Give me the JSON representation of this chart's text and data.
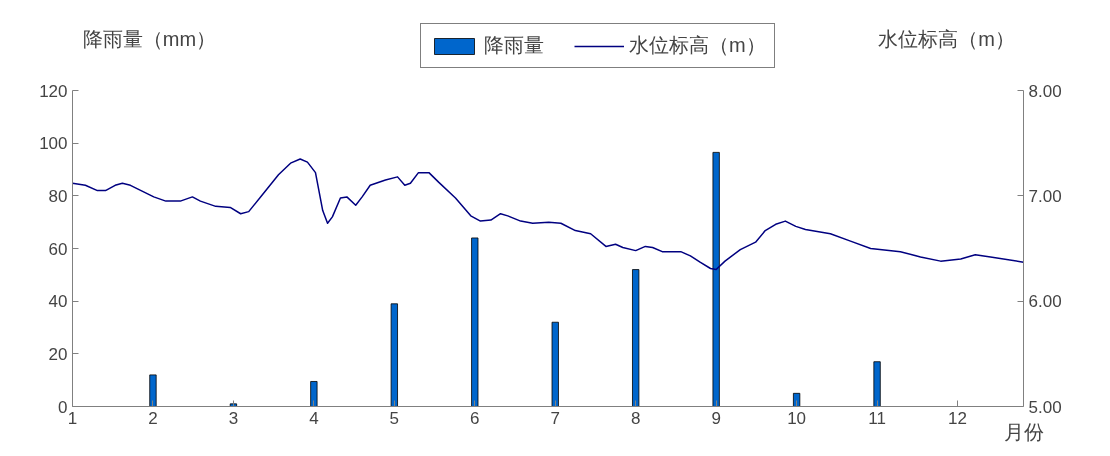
{
  "chart_data": {
    "type": "bar",
    "ylabel": "降雨量（mm）",
    "y2label": "水位标高（m）",
    "xlabel": "月份",
    "xlim": [
      1,
      12.82
    ],
    "xticks": [
      1,
      2,
      3,
      4,
      5,
      6,
      7,
      8,
      9,
      10,
      11,
      12
    ],
    "ylim": [
      0,
      120
    ],
    "yticks": [
      0,
      20,
      40,
      60,
      80,
      100,
      120
    ],
    "y2lim": [
      5,
      8
    ],
    "y2ticks": [
      {
        "value": 5,
        "label": "5.00"
      },
      {
        "value": 6,
        "label": "6.00"
      },
      {
        "value": 7,
        "label": "7.00"
      },
      {
        "value": 8,
        "label": "8.00"
      }
    ],
    "grid": false,
    "legend": "top",
    "series": [
      {
        "name": "降雨量",
        "color": "#0066cc",
        "x": [
          2,
          3,
          4,
          5,
          6,
          7,
          8,
          9,
          10,
          11
        ],
        "values": [
          12,
          1,
          9.5,
          39,
          64,
          32,
          52,
          96.5,
          5,
          17
        ]
      },
      {
        "name": "水位标高（m）",
        "type": "line",
        "axis": "y2",
        "color": "#000080",
        "x": [
          1.0,
          1.16,
          1.31,
          1.41,
          1.53,
          1.62,
          1.72,
          2.01,
          2.16,
          2.34,
          2.49,
          2.59,
          2.78,
          2.96,
          3.09,
          3.19,
          3.36,
          3.56,
          3.71,
          3.83,
          3.92,
          4.02,
          4.11,
          4.17,
          4.23,
          4.33,
          4.41,
          4.52,
          4.6,
          4.7,
          4.89,
          5.04,
          5.13,
          5.2,
          5.3,
          5.43,
          5.55,
          5.76,
          5.95,
          6.07,
          6.2,
          6.32,
          6.41,
          6.57,
          6.72,
          6.92,
          7.07,
          7.25,
          7.44,
          7.63,
          7.75,
          7.84,
          8.0,
          8.12,
          8.21,
          8.33,
          8.56,
          8.68,
          8.8,
          8.93,
          9.0,
          9.11,
          9.3,
          9.49,
          9.61,
          9.74,
          9.86,
          9.99,
          10.11,
          10.42,
          10.67,
          10.92,
          11.29,
          11.54,
          11.79,
          12.04,
          12.22,
          12.41,
          12.82
        ],
        "values": [
          7.12,
          7.1,
          7.05,
          7.05,
          7.1,
          7.12,
          7.1,
          6.99,
          6.95,
          6.95,
          6.99,
          6.95,
          6.9,
          6.89,
          6.83,
          6.85,
          7.01,
          7.2,
          7.31,
          7.35,
          7.32,
          7.22,
          6.86,
          6.74,
          6.8,
          6.98,
          6.99,
          6.91,
          6.99,
          7.1,
          7.15,
          7.18,
          7.1,
          7.12,
          7.22,
          7.22,
          7.13,
          6.98,
          6.81,
          6.76,
          6.77,
          6.83,
          6.81,
          6.76,
          6.74,
          6.75,
          6.74,
          6.67,
          6.64,
          6.52,
          6.54,
          6.51,
          6.48,
          6.52,
          6.51,
          6.47,
          6.47,
          6.43,
          6.37,
          6.31,
          6.3,
          6.38,
          6.49,
          6.56,
          6.67,
          6.73,
          6.76,
          6.71,
          6.68,
          6.64,
          6.57,
          6.5,
          6.47,
          6.42,
          6.38,
          6.4,
          6.44,
          6.42,
          6.37
        ]
      }
    ]
  }
}
